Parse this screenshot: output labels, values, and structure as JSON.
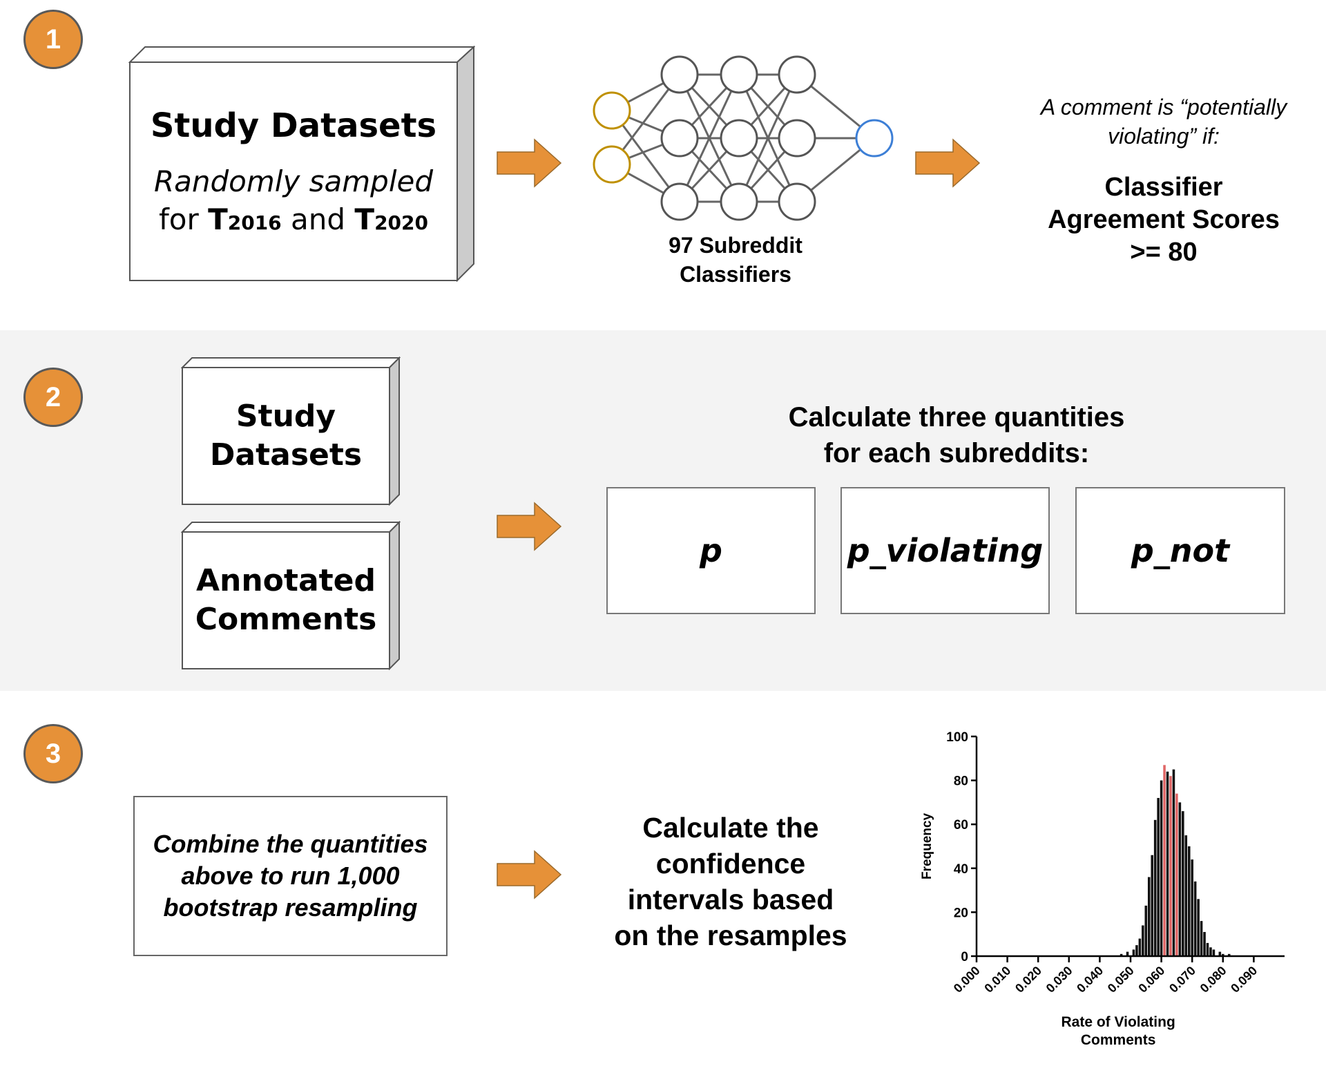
{
  "steps": [
    "1",
    "2",
    "3"
  ],
  "colors": {
    "accent": "#e69138",
    "input_node": "#bf9000",
    "output_node": "#3d7fd6",
    "bar": "#111111",
    "bar_highlight": "#e06666"
  },
  "step1": {
    "dataset_title": "Study Datasets",
    "dataset_sub_line1": "Randomly sampled",
    "dataset_sub_for": "for",
    "t_label": "T",
    "year_a": "2016",
    "and_word": "and",
    "year_b": "2020",
    "classifier_label_line1": "97 Subreddit",
    "classifier_label_line2": "Classifiers",
    "rule_line1": "A comment is “potentially",
    "rule_line2": "violating” if:",
    "criterion_line1": "Classifier",
    "criterion_line2": "Agreement Scores",
    "criterion_line3": ">= 80"
  },
  "step2": {
    "box1_line1": "Study",
    "box1_line2": "Datasets",
    "box2_line1": "Annotated",
    "box2_line2": "Comments",
    "heading_line1": "Calculate three quantities",
    "heading_line2": "for each subreddits:",
    "quantities": [
      "p",
      "p_violating",
      "p_not"
    ]
  },
  "step3": {
    "combine_line1": "Combine the quantities",
    "combine_line2": "above to run 1,000",
    "combine_line3": "bootstrap resampling",
    "ci_line1": "Calculate the",
    "ci_line2": "confidence",
    "ci_line3": "intervals based",
    "ci_line4": "on the resamples"
  },
  "chart_data": {
    "type": "bar",
    "title": "",
    "xlabel_line1": "Rate of Violating",
    "xlabel_line2": "Comments",
    "ylabel": "Frequency",
    "xlim": [
      0.0,
      0.1
    ],
    "ylim": [
      0,
      100
    ],
    "xticks": [
      "0.000",
      "0.010",
      "0.020",
      "0.030",
      "0.040",
      "0.050",
      "0.060",
      "0.070",
      "0.080",
      "0.090"
    ],
    "yticks": [
      "0",
      "20",
      "40",
      "60",
      "80",
      "100"
    ],
    "bin_width": 0.001,
    "bins_x": [
      0.047,
      0.049,
      0.051,
      0.052,
      0.053,
      0.054,
      0.055,
      0.056,
      0.057,
      0.058,
      0.059,
      0.06,
      0.061,
      0.062,
      0.063,
      0.064,
      0.065,
      0.066,
      0.067,
      0.068,
      0.069,
      0.07,
      0.071,
      0.072,
      0.073,
      0.074,
      0.075,
      0.076,
      0.077,
      0.079,
      0.08,
      0.082
    ],
    "frequencies": [
      1,
      2,
      3,
      5,
      8,
      14,
      23,
      36,
      46,
      62,
      72,
      80,
      87,
      84,
      82,
      85,
      74,
      70,
      66,
      55,
      50,
      44,
      34,
      26,
      16,
      11,
      6,
      4,
      3,
      2,
      1,
      1
    ],
    "highlight_x": [
      0.061,
      0.063,
      0.065
    ]
  }
}
